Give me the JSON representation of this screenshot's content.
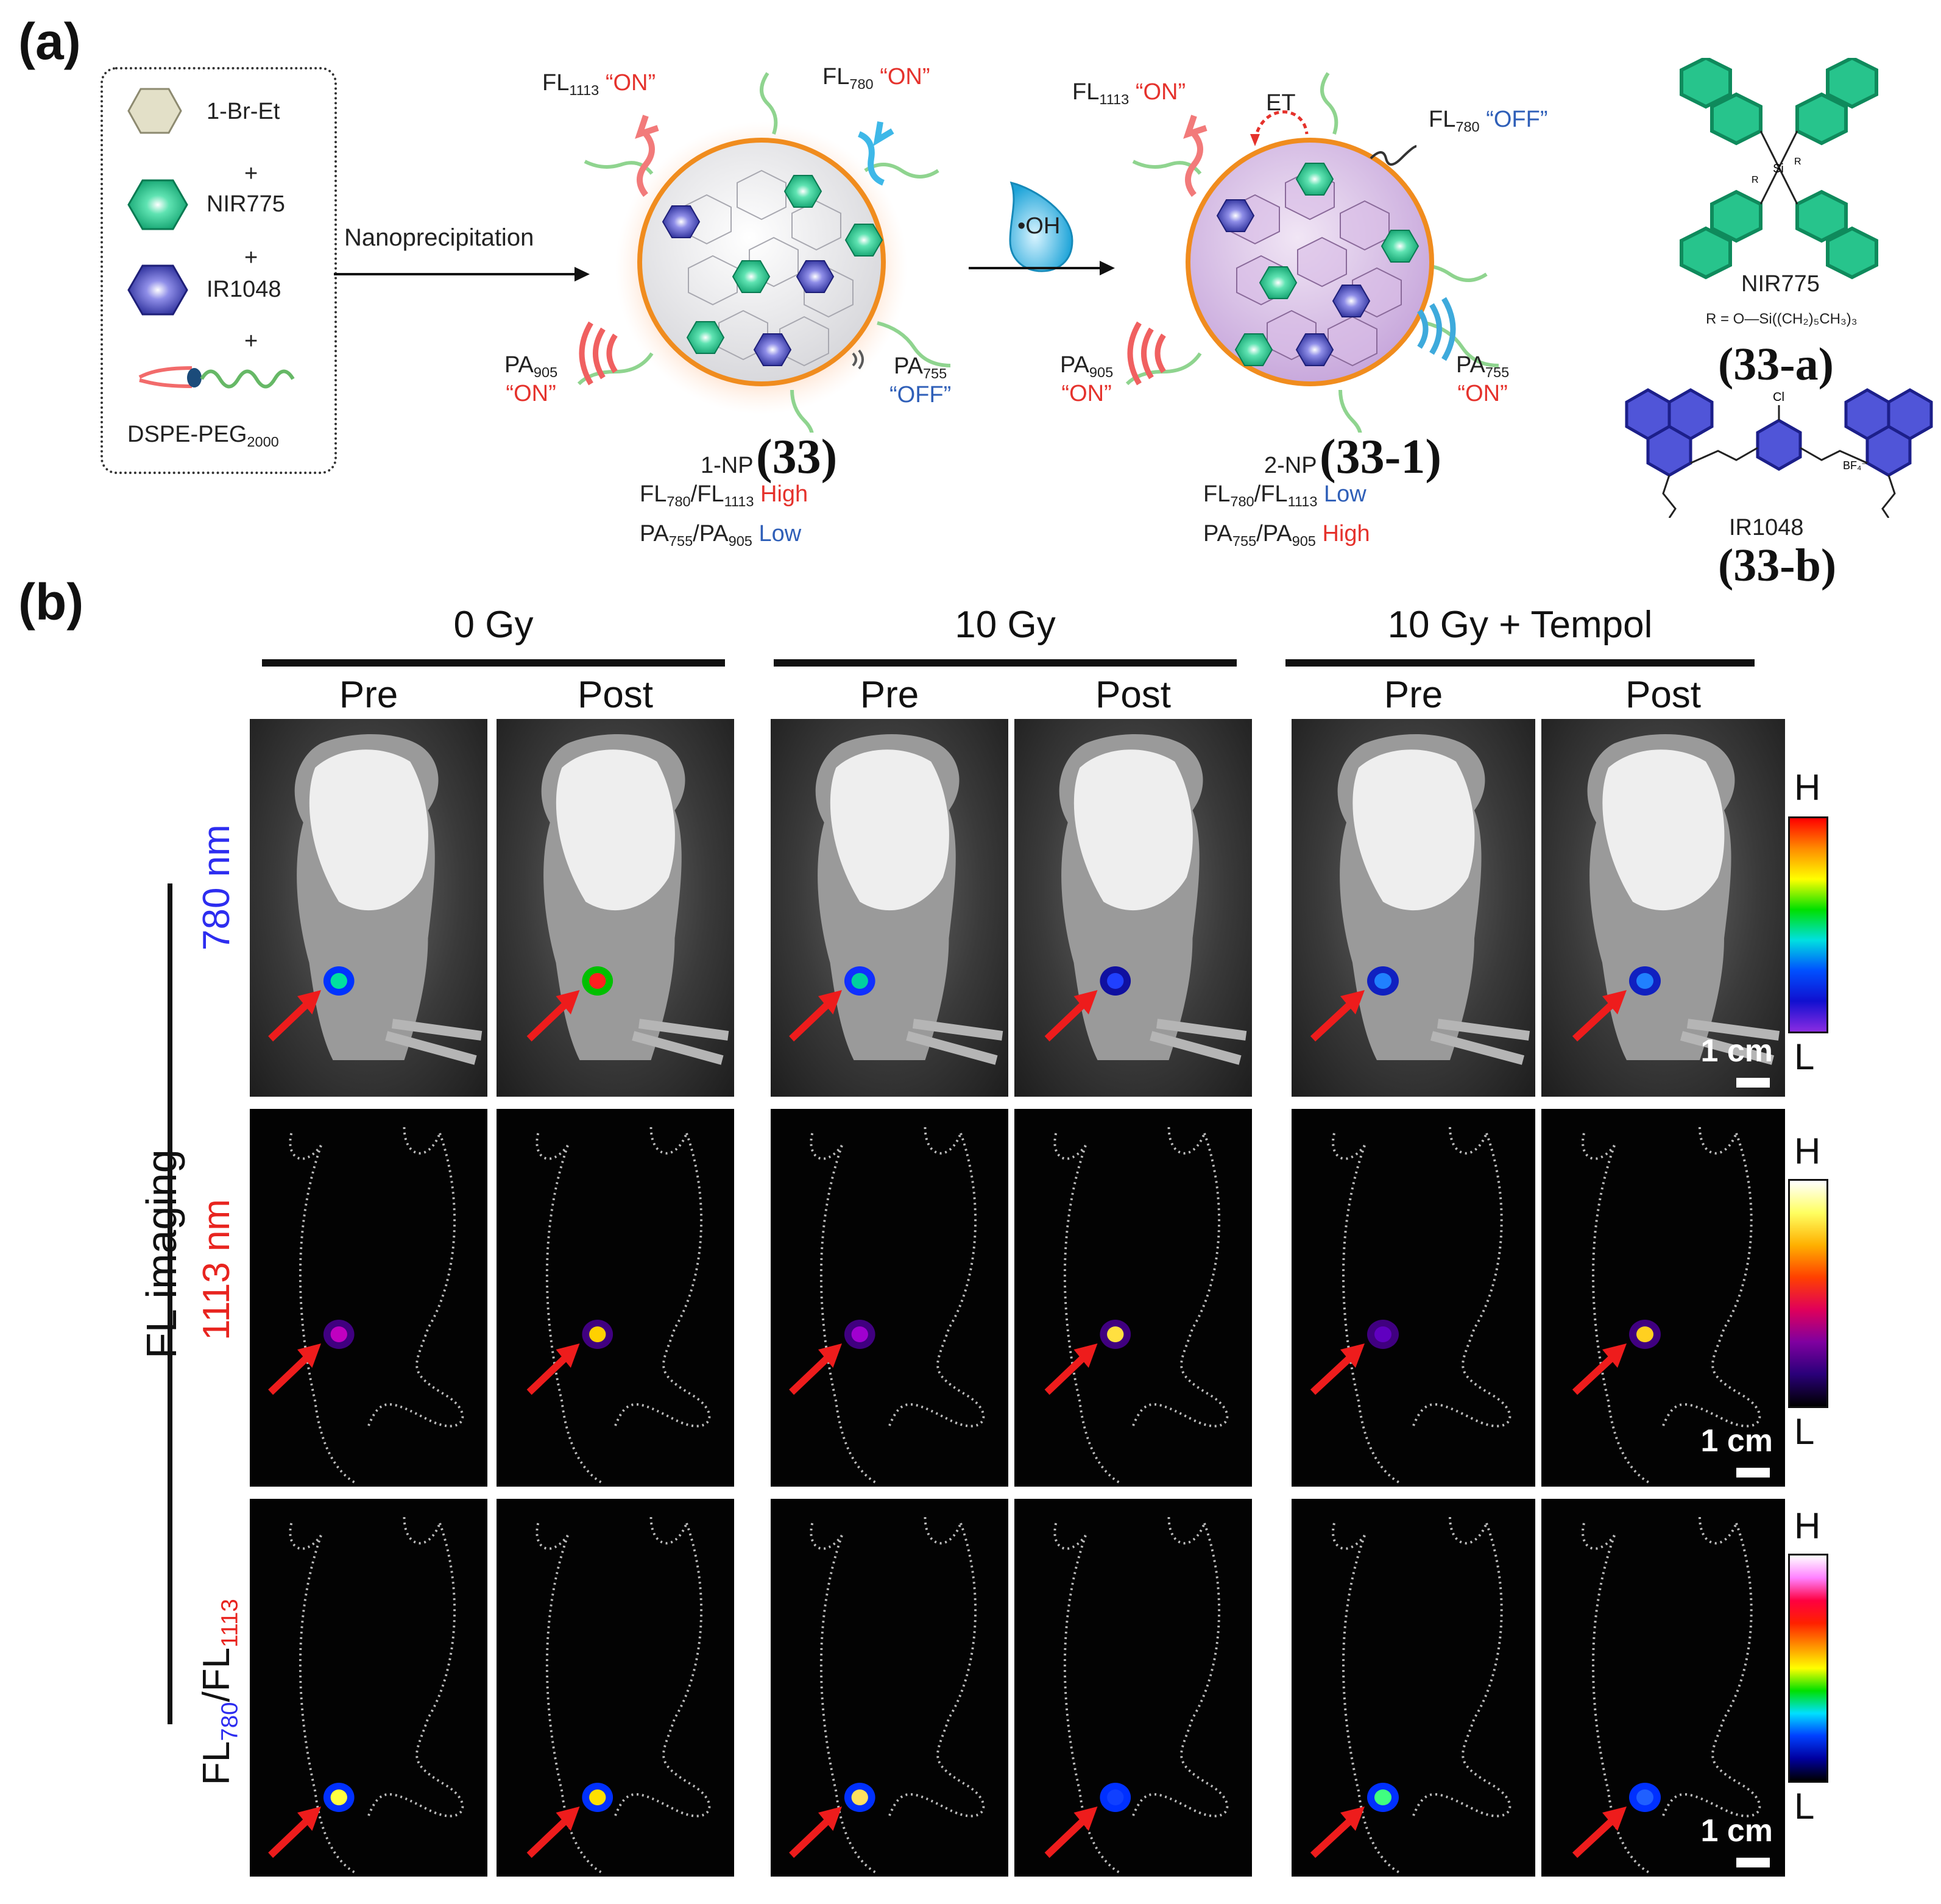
{
  "panel_a": {
    "label": "(a)",
    "legend": {
      "item_1": "1-Br-Et",
      "plus_1": "+",
      "item_2": "NIR775",
      "plus_2": "+",
      "item_3": "IR1048",
      "plus_3": "+",
      "item_4": "DSPE-PEG",
      "item_4_sub": "2000"
    },
    "arrow_1_label": "Nanoprecipitation",
    "np1": {
      "fl1113": "FL",
      "fl1113_sub": "1113",
      "fl1113_state": "“ON”",
      "fl780": "FL",
      "fl780_sub": "780",
      "fl780_state": "“ON”",
      "pa905": "PA",
      "pa905_sub": "905",
      "pa905_state": "“ON”",
      "pa755": "PA",
      "pa755_sub": "755",
      "pa755_state": "“OFF”",
      "name": "1-NP",
      "number": "(33)",
      "ratio_fl": "FL",
      "ratio_fl_a": "780",
      "ratio_fl_slash": "/FL",
      "ratio_fl_b": "1113",
      "ratio_fl_level": "High",
      "ratio_pa": "PA",
      "ratio_pa_a": "755",
      "ratio_pa_slash": "/PA",
      "ratio_pa_b": "905",
      "ratio_pa_level": "Low"
    },
    "oh_label": "•OH",
    "np2": {
      "fl1113": "FL",
      "fl1113_sub": "1113",
      "fl1113_state": "“ON”",
      "et": "ET",
      "fl780": "FL",
      "fl780_sub": "780",
      "fl780_state": "“OFF”",
      "pa905": "PA",
      "pa905_sub": "905",
      "pa905_state": "“ON”",
      "pa755": "PA",
      "pa755_sub": "755",
      "pa755_state": "“ON”",
      "name": "2-NP",
      "number": "(33-1)",
      "ratio_fl": "FL",
      "ratio_fl_a": "780",
      "ratio_fl_slash": "/FL",
      "ratio_fl_b": "1113",
      "ratio_fl_level": "Low",
      "ratio_pa": "PA",
      "ratio_pa_a": "755",
      "ratio_pa_slash": "/PA",
      "ratio_pa_b": "905",
      "ratio_pa_level": "High"
    },
    "chem_a": {
      "name": "NIR775",
      "r_group": "R = O—Si((CH₂)₅CH₃)₃",
      "number": "(33-a)",
      "si": "Si",
      "r": "R"
    },
    "chem_b": {
      "name": "IR1048",
      "cl": "Cl",
      "counter": "BF₄⁻",
      "number": "(33-b)"
    }
  },
  "panel_b": {
    "label": "(b)",
    "groups": [
      "0 Gy",
      "10 Gy",
      "10 Gy + Tempol"
    ],
    "columns": [
      "Pre",
      "Post",
      "Pre",
      "Post",
      "Pre",
      "Post"
    ],
    "side_label": "FL imaging",
    "rows": {
      "r780": "780 nm",
      "r1113": "1113 nm",
      "ratio_a": "FL",
      "ratio_a_sub": "780",
      "ratio_slash": "/FL",
      "ratio_b_sub": "1113"
    },
    "colorbar_high": "H",
    "colorbar_low": "L",
    "scale": "1 cm",
    "colors": {
      "row780_label": "#2d2df0",
      "row1113_label": "#e8241f",
      "arrow": "#ee1c1c"
    }
  }
}
